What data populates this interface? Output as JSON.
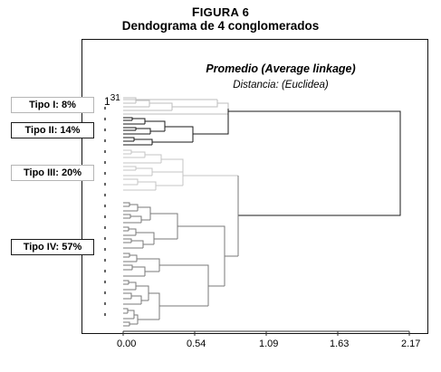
{
  "figure": {
    "number_prefix": "F",
    "number_rest": "IGURA 6",
    "title": "Dendograma de 4 conglomerados"
  },
  "plot": {
    "method": "Promedio (Average linkage)",
    "distance": "Distancia: (Euclidea)",
    "side_number": "31",
    "x_ticks": [
      "0.00",
      "0.54",
      "1.09",
      "1.63",
      "2.17"
    ],
    "x_range": [
      0,
      2.17
    ]
  },
  "clusters": [
    {
      "label": "Tipo I: 8%",
      "color": "#bdbdbd",
      "style": "light"
    },
    {
      "label": "Tipo II: 14%",
      "color": "#1a1a1a",
      "style": "dark"
    },
    {
      "label": "Tipo III: 20%",
      "color": "#c4c4c4",
      "style": "light"
    },
    {
      "label": "Tipo IV: 57%",
      "color": "#7a7a7a",
      "style": "dark"
    }
  ]
}
